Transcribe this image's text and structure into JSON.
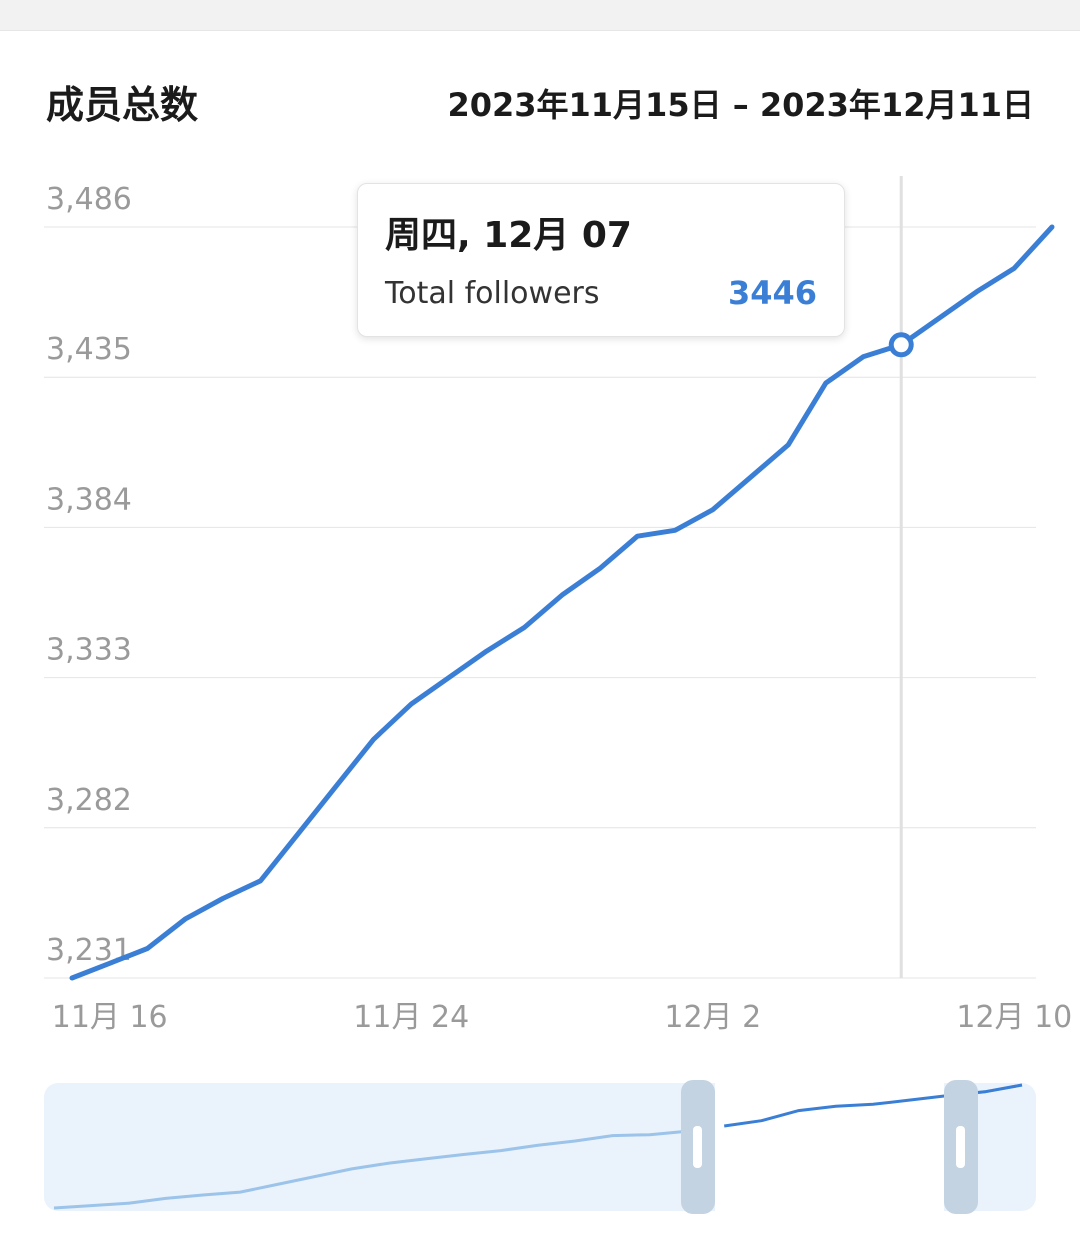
{
  "header": {
    "title": "成员总数",
    "date_range": "2023年11月15日 – 2023年12月11日"
  },
  "tooltip": {
    "date": "周四, 12月 07",
    "series_name": "Total followers",
    "value": "3446"
  },
  "colors": {
    "line": "#3a7fd5",
    "navigator_line": "#9cc3ea",
    "navigator_bg": "#eaf3fb",
    "handle": "#c3d3e2"
  },
  "chart_data": {
    "type": "line",
    "series": [
      {
        "name": "Total followers",
        "values": [
          3231,
          3236,
          3241,
          3251,
          3258,
          3264,
          3280,
          3296,
          3312,
          3324,
          3333,
          3342,
          3350,
          3361,
          3370,
          3381,
          3383,
          3390,
          3401,
          3412,
          3433,
          3442,
          3446,
          3455,
          3464,
          3472,
          3486
        ]
      }
    ],
    "x": [
      "11月 15",
      "11月 16",
      "11月 17",
      "11月 18",
      "11月 19",
      "11月 20",
      "11月 21",
      "11月 22",
      "11月 23",
      "11月 24",
      "11月 25",
      "11月 26",
      "11月 27",
      "11月 28",
      "11月 29",
      "11月 30",
      "12月 1",
      "12月 2",
      "12月 3",
      "12月 4",
      "12月 5",
      "12月 6",
      "12月 7",
      "12月 8",
      "12月 9",
      "12月 10",
      "12月 11"
    ],
    "x_tick_labels": [
      "11月 16",
      "11月 24",
      "12月 2",
      "12月 10"
    ],
    "y_tick_labels": [
      "3,486",
      "3,435",
      "3,384",
      "3,333",
      "3,282",
      "3,231"
    ],
    "y_ticks": [
      3486,
      3435,
      3384,
      3333,
      3282,
      3231
    ],
    "ylim": [
      3231,
      3486
    ],
    "highlight_x": "12月 7",
    "highlight_value": 3446,
    "grid": true,
    "navigator": true,
    "navigator_window": [
      "12月 3",
      "12月 11"
    ]
  }
}
